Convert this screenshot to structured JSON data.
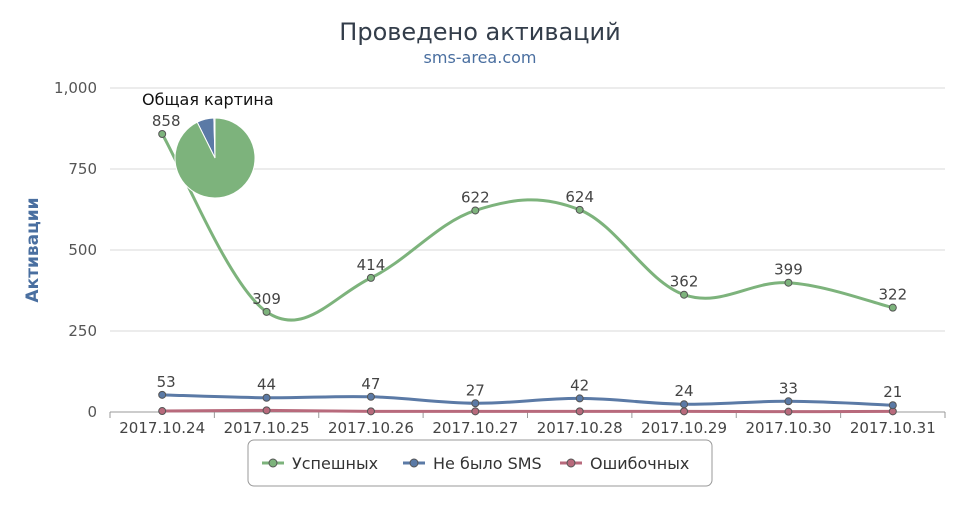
{
  "chart_data": {
    "type": "line",
    "title": "Проведено активаций",
    "subtitle": "sms-area.com",
    "ylabel": "Активации",
    "xlabel": "",
    "ylim": [
      0,
      1000
    ],
    "yticks": [
      0,
      250,
      500,
      750,
      1000
    ],
    "ytick_labels": [
      "0",
      "250",
      "500",
      "750",
      "1,000"
    ],
    "categories": [
      "2017.10.24",
      "2017.10.25",
      "2017.10.26",
      "2017.10.27",
      "2017.10.28",
      "2017.10.29",
      "2017.10.30",
      "2017.10.31"
    ],
    "grid": true,
    "legend_position": "bottom-center",
    "series": [
      {
        "name": "Успешных",
        "color": "#7db37c",
        "values": [
          858,
          309,
          414,
          622,
          624,
          362,
          399,
          322
        ],
        "show_labels": true
      },
      {
        "name": "Не было SMS",
        "color": "#5b7aa6",
        "values": [
          53,
          44,
          47,
          27,
          42,
          24,
          33,
          21
        ],
        "show_labels": true
      },
      {
        "name": "Ошибочных",
        "color": "#b86a7c",
        "values": [
          3,
          5,
          2,
          2,
          2,
          2,
          1,
          2
        ],
        "show_labels": false
      }
    ],
    "pie": {
      "title": "Общая картина",
      "slices": [
        {
          "name": "Успешных",
          "value": 3910,
          "color": "#7db37c"
        },
        {
          "name": "Не было SMS",
          "value": 291,
          "color": "#5b7aa6"
        },
        {
          "name": "Ошибочных",
          "value": 19,
          "color": "#b86a7c"
        }
      ]
    }
  }
}
